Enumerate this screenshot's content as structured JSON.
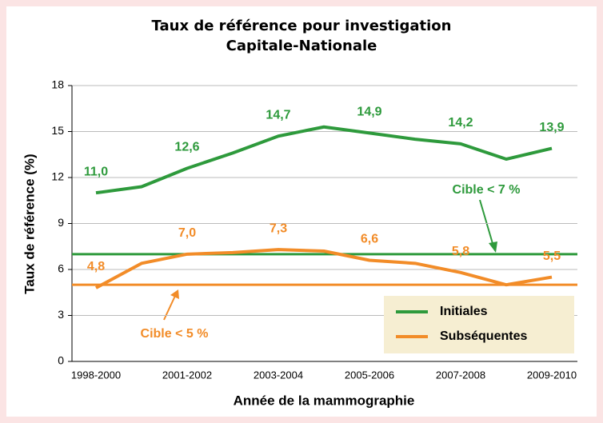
{
  "chart_data": {
    "type": "line",
    "title": "Taux de référence pour investigation",
    "subtitle": "Capitale-Nationale",
    "x_label": "Année de la mammographie",
    "y_label": "Taux de référence (%)",
    "categories": [
      "1998-2000",
      null,
      "2001-2002",
      null,
      "2003-2004",
      null,
      "2005-2006",
      null,
      "2007-2008",
      null,
      "2009-2010"
    ],
    "series": [
      {
        "name": "Initiales",
        "color": "#2e9a3c",
        "values": [
          11.0,
          11.4,
          12.6,
          13.6,
          14.7,
          15.3,
          14.9,
          14.5,
          14.2,
          13.2,
          13.9
        ],
        "value_labels": [
          "11,0",
          null,
          "12,6",
          null,
          "14,7",
          null,
          "14,9",
          null,
          "14,2",
          null,
          "13,9"
        ]
      },
      {
        "name": "Subséquentes",
        "color": "#f28c28",
        "values": [
          4.8,
          6.4,
          7.0,
          7.1,
          7.3,
          7.2,
          6.6,
          6.4,
          5.8,
          5.0,
          5.5
        ],
        "value_labels": [
          "4,8",
          null,
          "7,0",
          null,
          "7,3",
          null,
          "6,6",
          null,
          "5,8",
          null,
          "5,5"
        ]
      }
    ],
    "reference_lines": [
      {
        "value": 7,
        "label": "Cible < 7 %",
        "color": "#2e9a3c"
      },
      {
        "value": 5,
        "label": "Cible < 5 %",
        "color": "#f28c28"
      }
    ],
    "ylim": [
      0,
      18
    ],
    "yticks": [
      0,
      3,
      6,
      9,
      12,
      15,
      18
    ],
    "grid": true,
    "legend": "lower right"
  }
}
